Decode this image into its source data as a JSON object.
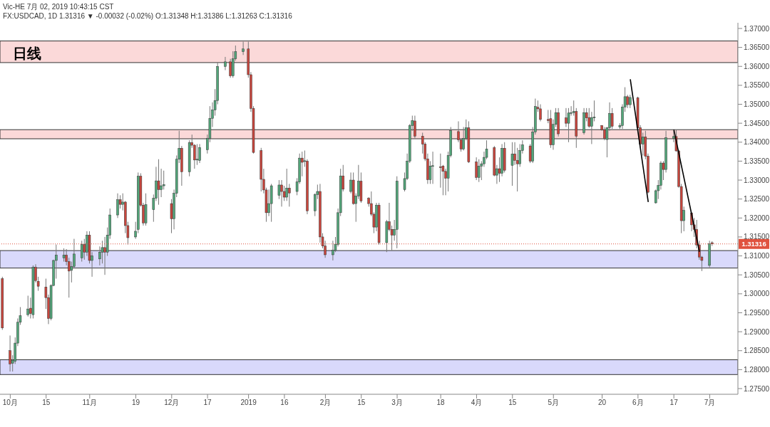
{
  "chart_data": {
    "type": "candlestick",
    "title": "日线",
    "subtitle": "FX:USDCAD, 1D 1.31316 ▼ -0.00032 (-0.02%) O:1.31348 H:1.31386 L:1.31263 C:1.31316",
    "annotations": [
      "Vic-HE 7月 02, 2019 10:43:15 CST"
    ],
    "x": [
      "2018-09-28",
      "2018-10-01",
      "2018-10-02",
      "2018-10-03",
      "2018-10-04",
      "2018-10-05",
      "2018-10-08",
      "2018-10-09",
      "2018-10-10",
      "2018-10-11",
      "2018-10-12",
      "2018-10-15",
      "2018-10-16",
      "2018-10-17",
      "2018-10-18",
      "2018-10-19",
      "2018-10-22",
      "2018-10-23",
      "2018-10-24",
      "2018-10-25",
      "2018-10-26",
      "2018-10-29",
      "2018-10-30",
      "2018-10-31",
      "2018-11-01",
      "2018-11-02",
      "2018-11-05",
      "2018-11-06",
      "2018-11-07",
      "2018-11-08",
      "2018-11-09",
      "2018-11-12",
      "2018-11-13",
      "2018-11-14",
      "2018-11-15",
      "2018-11-16",
      "2018-11-19",
      "2018-11-20",
      "2018-11-21",
      "2018-11-22",
      "2018-11-23",
      "2018-11-26",
      "2018-11-27",
      "2018-11-28",
      "2018-11-29",
      "2018-11-30",
      "2018-12-03",
      "2018-12-04",
      "2018-12-05",
      "2018-12-06",
      "2018-12-07",
      "2018-12-10",
      "2018-12-11",
      "2018-12-12",
      "2018-12-13",
      "2018-12-14",
      "2018-12-17",
      "2018-12-18",
      "2018-12-19",
      "2018-12-20",
      "2018-12-21",
      "2018-12-24",
      "2018-12-26",
      "2018-12-27",
      "2018-12-28",
      "2018-12-31",
      "2019-01-02",
      "2019-01-03",
      "2019-01-04",
      "2019-01-07",
      "2019-01-08",
      "2019-01-09",
      "2019-01-10",
      "2019-01-11",
      "2019-01-14",
      "2019-01-15",
      "2019-01-16",
      "2019-01-17",
      "2019-01-18",
      "2019-01-21",
      "2019-01-22",
      "2019-01-23",
      "2019-01-24",
      "2019-01-25",
      "2019-01-28",
      "2019-01-29",
      "2019-01-30",
      "2019-01-31",
      "2019-02-01",
      "2019-02-04",
      "2019-02-05",
      "2019-02-06",
      "2019-02-07",
      "2019-02-08",
      "2019-02-11",
      "2019-02-12",
      "2019-02-13",
      "2019-02-14",
      "2019-02-15",
      "2019-02-18",
      "2019-02-19",
      "2019-02-20",
      "2019-02-21",
      "2019-02-22",
      "2019-02-25",
      "2019-02-26",
      "2019-02-27",
      "2019-02-28",
      "2019-03-01",
      "2019-03-04",
      "2019-03-05",
      "2019-03-06",
      "2019-03-07",
      "2019-03-08",
      "2019-03-11",
      "2019-03-12",
      "2019-03-13",
      "2019-03-14",
      "2019-03-15",
      "2019-03-18",
      "2019-03-19",
      "2019-03-20",
      "2019-03-21",
      "2019-03-22",
      "2019-03-25",
      "2019-03-26",
      "2019-03-27",
      "2019-03-28",
      "2019-03-29",
      "2019-04-01",
      "2019-04-02",
      "2019-04-03",
      "2019-04-04",
      "2019-04-05",
      "2019-04-08",
      "2019-04-09",
      "2019-04-10",
      "2019-04-11",
      "2019-04-12",
      "2019-04-15",
      "2019-04-16",
      "2019-04-17",
      "2019-04-18",
      "2019-04-19",
      "2019-04-22",
      "2019-04-23",
      "2019-04-24",
      "2019-04-25",
      "2019-04-26",
      "2019-04-29",
      "2019-04-30",
      "2019-05-01",
      "2019-05-02",
      "2019-05-03",
      "2019-05-06",
      "2019-05-07",
      "2019-05-08",
      "2019-05-09",
      "2019-05-10",
      "2019-05-13",
      "2019-05-14",
      "2019-05-15",
      "2019-05-16",
      "2019-05-17",
      "2019-05-20",
      "2019-05-21",
      "2019-05-22",
      "2019-05-23",
      "2019-05-24",
      "2019-05-27",
      "2019-05-28",
      "2019-05-29",
      "2019-05-30",
      "2019-05-31",
      "2019-06-03",
      "2019-06-04",
      "2019-06-05",
      "2019-06-06",
      "2019-06-07",
      "2019-06-10",
      "2019-06-11",
      "2019-06-12",
      "2019-06-13",
      "2019-06-14",
      "2019-06-17",
      "2019-06-18",
      "2019-06-19",
      "2019-06-20",
      "2019-06-21",
      "2019-06-24",
      "2019-06-25",
      "2019-06-26",
      "2019-06-27",
      "2019-06-28",
      "2019-07-01",
      "2019-07-02"
    ],
    "ohlc": [
      [
        1.304,
        1.3045,
        1.2905,
        1.291
      ],
      [
        1.285,
        1.289,
        1.2795,
        1.2815
      ],
      [
        1.2817,
        1.2838,
        1.2795,
        1.2825
      ],
      [
        1.2822,
        1.2885,
        1.2815,
        1.287
      ],
      [
        1.287,
        1.2935,
        1.2862,
        1.2925
      ],
      [
        1.2925,
        1.2965,
        1.2918,
        1.2942
      ],
      [
        1.2945,
        1.2995,
        1.294,
        1.296
      ],
      [
        1.2962,
        1.299,
        1.2935,
        1.2948
      ],
      [
        1.2945,
        1.3075,
        1.2935,
        1.307
      ],
      [
        1.307,
        1.3078,
        1.303,
        1.3035
      ],
      [
        1.3033,
        1.3045,
        1.3008,
        1.302
      ],
      [
        1.3018,
        1.304,
        1.296,
        1.299
      ],
      [
        1.299,
        1.2998,
        1.292,
        1.2935
      ],
      [
        1.2935,
        1.3025,
        1.293,
        1.3022
      ],
      [
        1.3022,
        1.309,
        1.302,
        1.3088
      ],
      [
        1.3088,
        1.313,
        1.304,
        1.3102
      ],
      [
        1.3095,
        1.312,
        1.3085,
        1.3102
      ],
      [
        1.3102,
        1.3118,
        1.3075,
        1.3085
      ],
      [
        1.3085,
        1.3095,
        1.299,
        1.306
      ],
      [
        1.3062,
        1.3085,
        1.303,
        1.3072
      ],
      [
        1.3072,
        1.3145,
        1.3068,
        1.3105
      ],
      [
        1.3095,
        1.314,
        1.3085,
        1.313
      ],
      [
        1.313,
        1.3145,
        1.309,
        1.311
      ],
      [
        1.311,
        1.3165,
        1.31,
        1.3155
      ],
      [
        1.3155,
        1.3165,
        1.308,
        1.3088
      ],
      [
        1.3088,
        1.311,
        1.3045,
        1.31
      ],
      [
        1.3092,
        1.3125,
        1.3075,
        1.311
      ],
      [
        1.311,
        1.314,
        1.308,
        1.3122
      ],
      [
        1.3122,
        1.315,
        1.305,
        1.311
      ],
      [
        1.311,
        1.3175,
        1.31,
        1.3155
      ],
      [
        1.3155,
        1.3225,
        1.3145,
        1.3208
      ],
      [
        1.3208,
        1.3265,
        1.32,
        1.3248
      ],
      [
        1.3248,
        1.326,
        1.3225,
        1.3236
      ],
      [
        1.3236,
        1.3265,
        1.322,
        1.3242
      ],
      [
        1.3242,
        1.3245,
        1.316,
        1.318
      ],
      [
        1.318,
        1.319,
        1.313,
        1.3148
      ],
      [
        1.315,
        1.319,
        1.3145,
        1.3165
      ],
      [
        1.317,
        1.332,
        1.316,
        1.331
      ],
      [
        1.331,
        1.3318,
        1.323,
        1.3234
      ],
      [
        1.3234,
        1.324,
        1.318,
        1.3187
      ],
      [
        1.3187,
        1.3265,
        1.318,
        1.3235
      ],
      [
        1.3222,
        1.3262,
        1.319,
        1.3252
      ],
      [
        1.3252,
        1.3335,
        1.3245,
        1.3298
      ],
      [
        1.3298,
        1.3355,
        1.3235,
        1.3275
      ],
      [
        1.3275,
        1.333,
        1.3255,
        1.3285
      ],
      [
        1.3285,
        1.3325,
        1.3275,
        1.3288
      ],
      [
        1.3238,
        1.325,
        1.316,
        1.3198
      ],
      [
        1.3198,
        1.3275,
        1.317,
        1.3265
      ],
      [
        1.3265,
        1.3365,
        1.3255,
        1.3355
      ],
      [
        1.3355,
        1.343,
        1.3345,
        1.3384
      ],
      [
        1.3384,
        1.339,
        1.3285,
        1.3322
      ],
      [
        1.3322,
        1.3405,
        1.331,
        1.3399
      ],
      [
        1.3399,
        1.342,
        1.3385,
        1.3392
      ],
      [
        1.3392,
        1.3395,
        1.333,
        1.3353
      ],
      [
        1.3353,
        1.3395,
        1.334,
        1.3355
      ],
      [
        1.3352,
        1.3395,
        1.3345,
        1.3386
      ],
      [
        1.338,
        1.342,
        1.337,
        1.341
      ],
      [
        1.341,
        1.3495,
        1.34,
        1.3463
      ],
      [
        1.3463,
        1.3505,
        1.344,
        1.3485
      ],
      [
        1.3485,
        1.354,
        1.347,
        1.351
      ],
      [
        1.351,
        1.361,
        1.35,
        1.36
      ],
      [
        1.36,
        1.3625,
        1.359,
        1.3612
      ],
      [
        1.3612,
        1.362,
        1.357,
        1.3575
      ],
      [
        1.3575,
        1.364,
        1.357,
        1.362
      ],
      [
        1.362,
        1.3655,
        1.3615,
        1.3639
      ],
      [
        1.3639,
        1.3665,
        1.363,
        1.3646
      ],
      [
        1.3646,
        1.3665,
        1.357,
        1.3578
      ],
      [
        1.3578,
        1.3585,
        1.348,
        1.3489
      ],
      [
        1.3489,
        1.3495,
        1.337,
        1.3373
      ],
      [
        1.3378,
        1.3385,
        1.327,
        1.3302
      ],
      [
        1.3302,
        1.333,
        1.3265,
        1.3274
      ],
      [
        1.3274,
        1.328,
        1.319,
        1.3214
      ],
      [
        1.3214,
        1.3275,
        1.3205,
        1.3238
      ],
      [
        1.3238,
        1.329,
        1.319,
        1.3285
      ],
      [
        1.326,
        1.33,
        1.325,
        1.3287
      ],
      [
        1.3287,
        1.33,
        1.323,
        1.327
      ],
      [
        1.327,
        1.3285,
        1.3245,
        1.3255
      ],
      [
        1.3255,
        1.333,
        1.3245,
        1.3279
      ],
      [
        1.3279,
        1.329,
        1.323,
        1.3266
      ],
      [
        1.327,
        1.3305,
        1.326,
        1.3295
      ],
      [
        1.3295,
        1.337,
        1.329,
        1.3358
      ],
      [
        1.3358,
        1.3375,
        1.331,
        1.3347
      ],
      [
        1.335,
        1.3378,
        1.3335,
        1.3351
      ],
      [
        1.335,
        1.3355,
        1.321,
        1.3219
      ],
      [
        1.3219,
        1.3265,
        1.3205,
        1.3262
      ],
      [
        1.3262,
        1.3288,
        1.325,
        1.327
      ],
      [
        1.327,
        1.329,
        1.3135,
        1.315
      ],
      [
        1.315,
        1.316,
        1.312,
        1.3126
      ],
      [
        1.3126,
        1.314,
        1.3095,
        1.3103
      ],
      [
        1.3103,
        1.314,
        1.3088,
        1.3115
      ],
      [
        1.3115,
        1.315,
        1.311,
        1.3131
      ],
      [
        1.313,
        1.3225,
        1.3125,
        1.3214
      ],
      [
        1.3214,
        1.333,
        1.3205,
        1.3311
      ],
      [
        1.3311,
        1.334,
        1.327,
        1.3276
      ],
      [
        1.327,
        1.332,
        1.3265,
        1.33
      ],
      [
        1.33,
        1.332,
        1.3235,
        1.3238
      ],
      [
        1.3238,
        1.3265,
        1.319,
        1.3258
      ],
      [
        1.3258,
        1.334,
        1.325,
        1.3297
      ],
      [
        1.3297,
        1.332,
        1.324,
        1.3245
      ],
      [
        1.3252,
        1.3255,
        1.323,
        1.3238
      ],
      [
        1.3238,
        1.327,
        1.3205,
        1.321
      ],
      [
        1.321,
        1.3215,
        1.316,
        1.3176
      ],
      [
        1.3176,
        1.324,
        1.3165,
        1.3234
      ],
      [
        1.3234,
        1.324,
        1.313,
        1.3135
      ],
      [
        1.3135,
        1.3195,
        1.311,
        1.319
      ],
      [
        1.319,
        1.324,
        1.3165,
        1.317
      ],
      [
        1.317,
        1.318,
        1.3115,
        1.3155
      ],
      [
        1.3155,
        1.3195,
        1.314,
        1.317
      ],
      [
        1.317,
        1.331,
        1.312,
        1.3297
      ],
      [
        1.3275,
        1.332,
        1.327,
        1.3304
      ],
      [
        1.3304,
        1.337,
        1.33,
        1.335
      ],
      [
        1.335,
        1.3448,
        1.3345,
        1.3444
      ],
      [
        1.3444,
        1.347,
        1.343,
        1.3457
      ],
      [
        1.3456,
        1.347,
        1.341,
        1.3416
      ],
      [
        1.3416,
        1.3425,
        1.337,
        1.3395
      ],
      [
        1.3395,
        1.34,
        1.335,
        1.3356
      ],
      [
        1.3356,
        1.337,
        1.329,
        1.3301
      ],
      [
        1.3301,
        1.335,
        1.329,
        1.3337
      ],
      [
        1.3337,
        1.3375,
        1.329,
        1.3338
      ],
      [
        1.3335,
        1.337,
        1.328,
        1.3333
      ],
      [
        1.3337,
        1.334,
        1.326,
        1.3323
      ],
      [
        1.3323,
        1.333,
        1.326,
        1.3305
      ],
      [
        1.3305,
        1.3375,
        1.327,
        1.3365
      ],
      [
        1.3365,
        1.344,
        1.336,
        1.3431
      ],
      [
        1.3428,
        1.3455,
        1.34,
        1.3406
      ],
      [
        1.3406,
        1.341,
        1.3375,
        1.3382
      ],
      [
        1.3382,
        1.344,
        1.3378,
        1.341
      ],
      [
        1.341,
        1.346,
        1.3405,
        1.3438
      ],
      [
        1.3438,
        1.3455,
        1.3345,
        1.3348
      ],
      [
        1.3348,
        1.336,
        1.33,
        1.3307
      ],
      [
        1.3307,
        1.3355,
        1.3295,
        1.3337
      ],
      [
        1.3337,
        1.335,
        1.33,
        1.3343
      ],
      [
        1.3343,
        1.3375,
        1.3335,
        1.336
      ],
      [
        1.336,
        1.3405,
        1.3355,
        1.3382
      ],
      [
        1.3386,
        1.339,
        1.331,
        1.3313
      ],
      [
        1.3313,
        1.334,
        1.329,
        1.333
      ],
      [
        1.333,
        1.336,
        1.3295,
        1.3318
      ],
      [
        1.3318,
        1.3395,
        1.331,
        1.3384
      ],
      [
        1.3384,
        1.34,
        1.332,
        1.3326
      ],
      [
        1.3339,
        1.34,
        1.3285,
        1.3369
      ],
      [
        1.3369,
        1.34,
        1.334,
        1.3352
      ],
      [
        1.3352,
        1.3385,
        1.327,
        1.3343
      ],
      [
        1.3343,
        1.3395,
        1.3335,
        1.3378
      ],
      [
        1.3378,
        1.3405,
        1.337,
        1.3393
      ],
      [
        1.339,
        1.3395,
        1.3345,
        1.335
      ],
      [
        1.335,
        1.344,
        1.3345,
        1.3427
      ],
      [
        1.3427,
        1.3515,
        1.342,
        1.3494
      ],
      [
        1.3492,
        1.351,
        1.348,
        1.3488
      ],
      [
        1.3488,
        1.35,
        1.3455,
        1.346
      ],
      [
        1.346,
        1.3485,
        1.345,
        1.3457
      ],
      [
        1.3462,
        1.3485,
        1.3385,
        1.3393
      ],
      [
        1.3393,
        1.346,
        1.338,
        1.3447
      ],
      [
        1.3447,
        1.349,
        1.344,
        1.3478
      ],
      [
        1.3478,
        1.349,
        1.3415,
        1.3422
      ],
      [
        1.3464,
        1.349,
        1.344,
        1.345
      ],
      [
        1.345,
        1.349,
        1.34,
        1.3477
      ],
      [
        1.3477,
        1.3495,
        1.347,
        1.3478
      ],
      [
        1.3478,
        1.351,
        1.347,
        1.3481
      ],
      [
        1.3481,
        1.349,
        1.3385,
        1.3416
      ],
      [
        1.3425,
        1.349,
        1.342,
        1.3478
      ],
      [
        1.3478,
        1.349,
        1.3455,
        1.3464
      ],
      [
        1.3465,
        1.349,
        1.3438,
        1.3442
      ],
      [
        1.3442,
        1.348,
        1.3395,
        1.3465
      ],
      [
        1.3465,
        1.351,
        1.3455,
        1.3466
      ],
      [
        1.3444,
        1.3445,
        1.343,
        1.3433
      ],
      [
        1.3433,
        1.344,
        1.3405,
        1.341
      ],
      [
        1.3407,
        1.344,
        1.336,
        1.3438
      ],
      [
        1.3438,
        1.3505,
        1.343,
        1.3476
      ],
      [
        1.3476,
        1.349,
        1.3435,
        1.3442
      ],
      [
        1.344,
        1.345,
        1.3435,
        1.3444
      ],
      [
        1.3444,
        1.35,
        1.3435,
        1.3493
      ],
      [
        1.3493,
        1.3545,
        1.348,
        1.352
      ],
      [
        1.352,
        1.3525,
        1.349,
        1.3499
      ],
      [
        1.3499,
        1.3525,
        1.349,
        1.3518
      ],
      [
        1.3517,
        1.352,
        1.3435,
        1.3438
      ],
      [
        1.3438,
        1.3445,
        1.3385,
        1.3395
      ],
      [
        1.3395,
        1.3425,
        1.3365,
        1.3414
      ],
      [
        1.3414,
        1.343,
        1.3355,
        1.3363
      ],
      [
        1.3363,
        1.337,
        1.3265,
        1.3268
      ],
      [
        1.324,
        1.3275,
        1.3238,
        1.3272
      ],
      [
        1.3272,
        1.33,
        1.325,
        1.3286
      ],
      [
        1.3286,
        1.335,
        1.3275,
        1.3345
      ],
      [
        1.3345,
        1.335,
        1.33,
        1.3328
      ],
      [
        1.3328,
        1.343,
        1.332,
        1.3412
      ],
      [
        1.341,
        1.343,
        1.34,
        1.3415
      ],
      [
        1.3415,
        1.3432,
        1.3375,
        1.3377
      ],
      [
        1.3377,
        1.338,
        1.328,
        1.3283
      ],
      [
        1.3283,
        1.329,
        1.316,
        1.3193
      ],
      [
        1.3193,
        1.323,
        1.3165,
        1.322
      ],
      [
        1.3213,
        1.3215,
        1.3165,
        1.3182
      ],
      [
        1.3182,
        1.32,
        1.315,
        1.317
      ],
      [
        1.317,
        1.3195,
        1.312,
        1.3129
      ],
      [
        1.3129,
        1.314,
        1.309,
        1.3097
      ],
      [
        1.3097,
        1.31,
        1.306,
        1.3088
      ],
      [
        1.3075,
        1.314,
        1.307,
        1.3132
      ],
      [
        1.31348,
        1.31386,
        1.31263,
        1.31316
      ]
    ],
    "series": [
      {
        "type": "line",
        "color": "#000000",
        "x": [
          "2019-05-31",
          "2019-06-07"
        ],
        "values": [
          1.3566,
          1.3242
        ]
      },
      {
        "type": "line",
        "color": "#000000",
        "x": [
          "2019-06-17",
          "2019-06-27"
        ],
        "values": [
          1.3433,
          1.3111
        ]
      }
    ],
    "xlim": [
      "2018-09-27",
      "2019-07-12"
    ],
    "ylim": [
      1.2735,
      1.3715
    ],
    "yticks": [
      {
        "value": 1.275,
        "label": "1.27500"
      },
      {
        "value": 1.28,
        "label": "1.28000"
      },
      {
        "value": 1.285,
        "label": "1.28500"
      },
      {
        "value": 1.29,
        "label": "1.29000"
      },
      {
        "value": 1.295,
        "label": "1.29500"
      },
      {
        "value": 1.3,
        "label": "1.30000"
      },
      {
        "value": 1.305,
        "label": "1.30500"
      },
      {
        "value": 1.31,
        "label": "1.31000"
      },
      {
        "value": 1.315,
        "label": "1.31500"
      },
      {
        "value": 1.32,
        "label": "1.32000"
      },
      {
        "value": 1.325,
        "label": "1.32500"
      },
      {
        "value": 1.33,
        "label": "1.33000"
      },
      {
        "value": 1.335,
        "label": "1.33500"
      },
      {
        "value": 1.34,
        "label": "1.34000"
      },
      {
        "value": 1.345,
        "label": "1.34500"
      },
      {
        "value": 1.35,
        "label": "1.35000"
      },
      {
        "value": 1.355,
        "label": "1.35500"
      },
      {
        "value": 1.36,
        "label": "1.36000"
      },
      {
        "value": 1.365,
        "label": "1.36500"
      },
      {
        "value": 1.37,
        "label": "1.37000"
      }
    ],
    "xticks": [
      {
        "value": "2018-10-01",
        "label": "10月"
      },
      {
        "value": "2018-10-15",
        "label": "15"
      },
      {
        "value": "2018-11-01",
        "label": "11月"
      },
      {
        "value": "2018-11-19",
        "label": "19"
      },
      {
        "value": "2018-12-03",
        "label": "12月"
      },
      {
        "value": "2018-12-17",
        "label": "17"
      },
      {
        "value": "2019-01-02",
        "label": "2019"
      },
      {
        "value": "2019-01-16",
        "label": "16"
      },
      {
        "value": "2019-02-01",
        "label": "2月"
      },
      {
        "value": "2019-02-15",
        "label": "15"
      },
      {
        "value": "2019-03-01",
        "label": "3月"
      },
      {
        "value": "2019-03-18",
        "label": "18"
      },
      {
        "value": "2019-04-01",
        "label": "4月"
      },
      {
        "value": "2019-04-15",
        "label": "15"
      },
      {
        "value": "2019-05-01",
        "label": "5月"
      },
      {
        "value": "2019-05-20",
        "label": "20"
      },
      {
        "value": "2019-06-03",
        "label": "6月"
      },
      {
        "value": "2019-06-17",
        "label": "17"
      },
      {
        "value": "2019-07-01",
        "label": "7月"
      }
    ],
    "ref_lines": [
      {
        "axis": "y",
        "value": 1.31316,
        "label": "1.31316",
        "color": "#e0533f",
        "line_style": "dotted"
      }
    ],
    "bands": [
      {
        "axis": "y",
        "from": 1.361,
        "to": 1.3667,
        "color": "#fbd9d9"
      },
      {
        "axis": "y",
        "from": 1.3409,
        "to": 1.3433,
        "color": "#fbd9d9"
      },
      {
        "axis": "y",
        "from": 1.3068,
        "to": 1.3114,
        "color": "#d9d9fb"
      },
      {
        "axis": "y",
        "from": 1.2787,
        "to": 1.2826,
        "color": "#d9d9fb"
      }
    ]
  }
}
